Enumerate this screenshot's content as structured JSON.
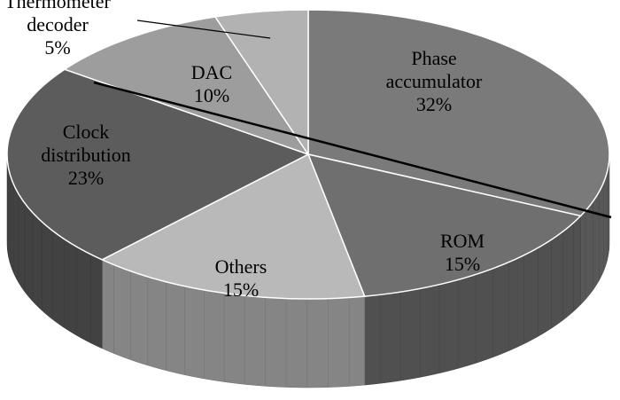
{
  "chart_data": {
    "type": "pie",
    "style": "3d",
    "title": "",
    "slices": [
      {
        "name": "Phase accumulator",
        "label_lines": [
          "Phase",
          "accumulator"
        ],
        "value": 32,
        "value_label": "32%",
        "color": "#7a7a7a"
      },
      {
        "name": "ROM",
        "label_lines": [
          "ROM"
        ],
        "value": 15,
        "value_label": "15%",
        "color": "#6f6f6f"
      },
      {
        "name": "Others",
        "label_lines": [
          "Others"
        ],
        "value": 15,
        "value_label": "15%",
        "color": "#b9b9b9"
      },
      {
        "name": "Clock distribution",
        "label_lines": [
          "Clock",
          "distribution"
        ],
        "value": 23,
        "value_label": "23%",
        "color": "#5c5c5c"
      },
      {
        "name": "DAC",
        "label_lines": [
          "DAC"
        ],
        "value": 10,
        "value_label": "10%",
        "color": "#9d9d9d"
      },
      {
        "name": "Thermometer decoder",
        "label_lines": [
          "Thermometer",
          "decoder"
        ],
        "value": 5,
        "value_label": "5%",
        "color": "#b2b2b2"
      }
    ],
    "legend": "none"
  }
}
